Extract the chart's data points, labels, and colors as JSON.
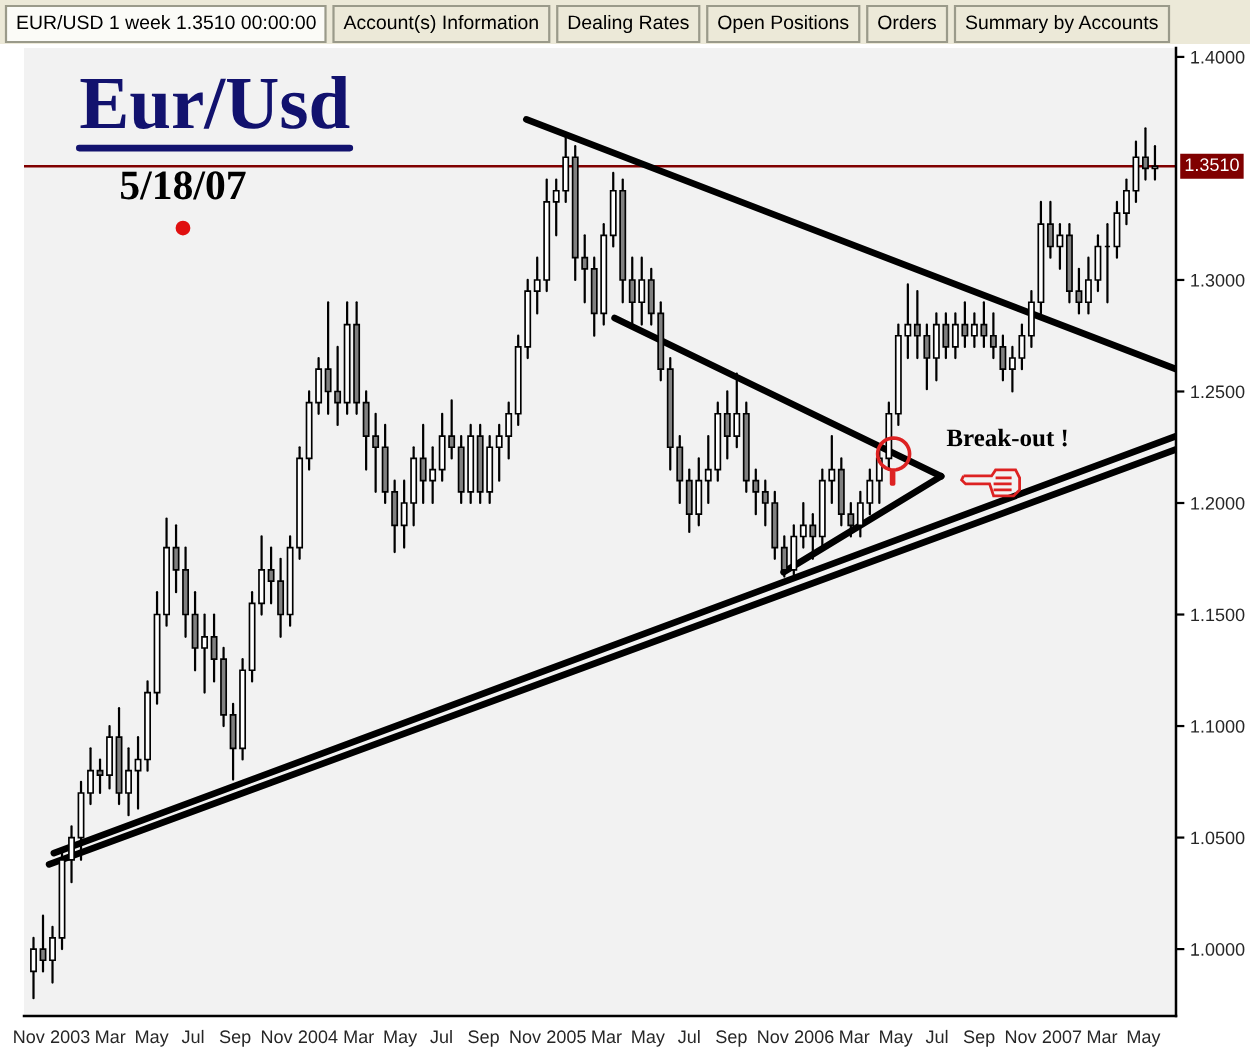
{
  "chart_data": {
    "type": "candlestick",
    "title": "Eur/Usd",
    "subtitle": "5/18/07",
    "x": [
      "2002-11-08",
      "2002-11-22",
      "2002-12-06",
      "2002-12-20",
      "2003-01-03",
      "2003-01-17",
      "2003-01-31",
      "2003-02-14",
      "2003-02-28",
      "2003-03-14",
      "2003-03-28",
      "2003-04-11",
      "2003-04-25",
      "2003-05-09",
      "2003-05-23",
      "2003-06-06",
      "2003-06-20",
      "2003-07-04",
      "2003-07-18",
      "2003-08-01",
      "2003-08-15",
      "2003-08-29",
      "2003-09-12",
      "2003-09-26",
      "2003-10-10",
      "2003-10-24",
      "2003-11-07",
      "2003-11-21",
      "2003-12-05",
      "2003-12-19",
      "2004-01-02",
      "2004-01-16",
      "2004-01-30",
      "2004-02-13",
      "2004-02-27",
      "2004-03-12",
      "2004-03-26",
      "2004-04-09",
      "2004-04-23",
      "2004-05-07",
      "2004-05-21",
      "2004-06-04",
      "2004-06-18",
      "2004-07-02",
      "2004-07-16",
      "2004-07-30",
      "2004-08-13",
      "2004-08-27",
      "2004-09-10",
      "2004-09-24",
      "2004-10-08",
      "2004-10-22",
      "2004-11-05",
      "2004-11-19",
      "2004-12-03",
      "2004-12-17",
      "2004-12-31",
      "2005-01-14",
      "2005-01-28",
      "2005-02-11",
      "2005-02-25",
      "2005-03-11",
      "2005-03-25",
      "2005-04-08",
      "2005-04-22",
      "2005-05-06",
      "2005-05-20",
      "2005-06-03",
      "2005-06-17",
      "2005-07-01",
      "2005-07-15",
      "2005-07-29",
      "2005-08-12",
      "2005-08-26",
      "2005-09-09",
      "2005-09-23",
      "2005-10-07",
      "2005-10-21",
      "2005-11-04",
      "2005-11-18",
      "2005-12-02",
      "2005-12-16",
      "2005-12-30",
      "2006-01-13",
      "2006-01-27",
      "2006-02-10",
      "2006-02-24",
      "2006-03-10",
      "2006-03-24",
      "2006-04-07",
      "2006-04-21",
      "2006-05-05",
      "2006-05-19",
      "2006-06-02",
      "2006-06-16",
      "2006-06-30",
      "2006-07-14",
      "2006-07-28",
      "2006-08-11",
      "2006-08-25",
      "2006-09-08",
      "2006-09-22",
      "2006-10-06",
      "2006-10-20",
      "2006-11-03",
      "2006-11-17",
      "2006-12-01",
      "2006-12-15",
      "2006-12-29",
      "2007-01-12",
      "2007-01-26",
      "2007-02-09",
      "2007-02-23",
      "2007-03-09",
      "2007-03-23",
      "2007-04-06",
      "2007-04-20",
      "2007-05-04",
      "2007-05-18"
    ],
    "ohlc": [
      [
        0.99,
        1.005,
        0.978,
        1.0
      ],
      [
        1.0,
        1.015,
        0.99,
        0.995
      ],
      [
        0.995,
        1.01,
        0.985,
        1.005
      ],
      [
        1.005,
        1.045,
        1.0,
        1.04
      ],
      [
        1.04,
        1.055,
        1.03,
        1.05
      ],
      [
        1.05,
        1.075,
        1.04,
        1.07
      ],
      [
        1.07,
        1.09,
        1.065,
        1.08
      ],
      [
        1.08,
        1.085,
        1.07,
        1.078
      ],
      [
        1.078,
        1.1,
        1.072,
        1.095
      ],
      [
        1.095,
        1.108,
        1.065,
        1.07
      ],
      [
        1.07,
        1.09,
        1.06,
        1.08
      ],
      [
        1.08,
        1.095,
        1.063,
        1.085
      ],
      [
        1.085,
        1.12,
        1.08,
        1.115
      ],
      [
        1.115,
        1.16,
        1.11,
        1.15
      ],
      [
        1.15,
        1.193,
        1.145,
        1.18
      ],
      [
        1.18,
        1.19,
        1.16,
        1.17
      ],
      [
        1.17,
        1.18,
        1.14,
        1.15
      ],
      [
        1.15,
        1.16,
        1.125,
        1.135
      ],
      [
        1.135,
        1.15,
        1.115,
        1.14
      ],
      [
        1.14,
        1.15,
        1.12,
        1.13
      ],
      [
        1.13,
        1.135,
        1.1,
        1.105
      ],
      [
        1.105,
        1.11,
        1.076,
        1.09
      ],
      [
        1.09,
        1.13,
        1.085,
        1.125
      ],
      [
        1.125,
        1.16,
        1.12,
        1.155
      ],
      [
        1.155,
        1.185,
        1.15,
        1.17
      ],
      [
        1.17,
        1.18,
        1.155,
        1.165
      ],
      [
        1.165,
        1.175,
        1.14,
        1.15
      ],
      [
        1.15,
        1.185,
        1.145,
        1.18
      ],
      [
        1.18,
        1.225,
        1.175,
        1.22
      ],
      [
        1.22,
        1.25,
        1.215,
        1.245
      ],
      [
        1.245,
        1.265,
        1.24,
        1.26
      ],
      [
        1.26,
        1.29,
        1.24,
        1.25
      ],
      [
        1.25,
        1.27,
        1.235,
        1.245
      ],
      [
        1.245,
        1.29,
        1.24,
        1.28
      ],
      [
        1.28,
        1.29,
        1.24,
        1.245
      ],
      [
        1.245,
        1.25,
        1.215,
        1.23
      ],
      [
        1.23,
        1.24,
        1.205,
        1.225
      ],
      [
        1.225,
        1.235,
        1.2,
        1.205
      ],
      [
        1.205,
        1.21,
        1.178,
        1.19
      ],
      [
        1.19,
        1.21,
        1.18,
        1.2
      ],
      [
        1.2,
        1.225,
        1.19,
        1.22
      ],
      [
        1.22,
        1.235,
        1.2,
        1.21
      ],
      [
        1.21,
        1.225,
        1.2,
        1.215
      ],
      [
        1.215,
        1.24,
        1.21,
        1.23
      ],
      [
        1.23,
        1.246,
        1.22,
        1.225
      ],
      [
        1.225,
        1.23,
        1.2,
        1.205
      ],
      [
        1.205,
        1.235,
        1.2,
        1.23
      ],
      [
        1.23,
        1.235,
        1.2,
        1.205
      ],
      [
        1.205,
        1.23,
        1.2,
        1.225
      ],
      [
        1.225,
        1.235,
        1.21,
        1.23
      ],
      [
        1.23,
        1.245,
        1.22,
        1.24
      ],
      [
        1.24,
        1.275,
        1.235,
        1.27
      ],
      [
        1.27,
        1.3,
        1.265,
        1.295
      ],
      [
        1.295,
        1.31,
        1.285,
        1.3
      ],
      [
        1.3,
        1.345,
        1.295,
        1.335
      ],
      [
        1.335,
        1.345,
        1.32,
        1.34
      ],
      [
        1.34,
        1.365,
        1.335,
        1.355
      ],
      [
        1.355,
        1.36,
        1.3,
        1.31
      ],
      [
        1.31,
        1.32,
        1.29,
        1.305
      ],
      [
        1.305,
        1.31,
        1.275,
        1.285
      ],
      [
        1.285,
        1.325,
        1.28,
        1.32
      ],
      [
        1.32,
        1.348,
        1.315,
        1.34
      ],
      [
        1.34,
        1.345,
        1.29,
        1.3
      ],
      [
        1.3,
        1.31,
        1.28,
        1.29
      ],
      [
        1.29,
        1.31,
        1.28,
        1.3
      ],
      [
        1.3,
        1.305,
        1.28,
        1.285
      ],
      [
        1.285,
        1.29,
        1.255,
        1.26
      ],
      [
        1.26,
        1.265,
        1.215,
        1.225
      ],
      [
        1.225,
        1.23,
        1.2,
        1.21
      ],
      [
        1.21,
        1.215,
        1.187,
        1.195
      ],
      [
        1.195,
        1.22,
        1.19,
        1.21
      ],
      [
        1.21,
        1.23,
        1.2,
        1.215
      ],
      [
        1.215,
        1.245,
        1.21,
        1.24
      ],
      [
        1.24,
        1.25,
        1.22,
        1.23
      ],
      [
        1.23,
        1.258,
        1.225,
        1.24
      ],
      [
        1.24,
        1.245,
        1.205,
        1.21
      ],
      [
        1.21,
        1.215,
        1.195,
        1.205
      ],
      [
        1.205,
        1.21,
        1.19,
        1.2
      ],
      [
        1.2,
        1.205,
        1.175,
        1.18
      ],
      [
        1.18,
        1.185,
        1.167,
        1.17
      ],
      [
        1.17,
        1.19,
        1.168,
        1.185
      ],
      [
        1.185,
        1.2,
        1.18,
        1.19
      ],
      [
        1.19,
        1.195,
        1.175,
        1.185
      ],
      [
        1.185,
        1.215,
        1.18,
        1.21
      ],
      [
        1.21,
        1.23,
        1.2,
        1.215
      ],
      [
        1.215,
        1.22,
        1.19,
        1.195
      ],
      [
        1.195,
        1.2,
        1.185,
        1.19
      ],
      [
        1.19,
        1.205,
        1.185,
        1.2
      ],
      [
        1.2,
        1.215,
        1.195,
        1.21
      ],
      [
        1.21,
        1.225,
        1.2,
        1.22
      ],
      [
        1.22,
        1.245,
        1.215,
        1.24
      ],
      [
        1.24,
        1.28,
        1.235,
        1.275
      ],
      [
        1.275,
        1.298,
        1.265,
        1.28
      ],
      [
        1.28,
        1.295,
        1.265,
        1.275
      ],
      [
        1.275,
        1.28,
        1.251,
        1.265
      ],
      [
        1.265,
        1.285,
        1.255,
        1.28
      ],
      [
        1.28,
        1.285,
        1.265,
        1.27
      ],
      [
        1.27,
        1.285,
        1.265,
        1.28
      ],
      [
        1.28,
        1.29,
        1.27,
        1.275
      ],
      [
        1.275,
        1.285,
        1.27,
        1.28
      ],
      [
        1.28,
        1.29,
        1.27,
        1.275
      ],
      [
        1.275,
        1.285,
        1.265,
        1.27
      ],
      [
        1.27,
        1.275,
        1.255,
        1.26
      ],
      [
        1.26,
        1.27,
        1.25,
        1.265
      ],
      [
        1.265,
        1.28,
        1.26,
        1.275
      ],
      [
        1.275,
        1.295,
        1.27,
        1.29
      ],
      [
        1.29,
        1.335,
        1.285,
        1.325
      ],
      [
        1.325,
        1.335,
        1.31,
        1.315
      ],
      [
        1.315,
        1.325,
        1.305,
        1.32
      ],
      [
        1.32,
        1.325,
        1.29,
        1.295
      ],
      [
        1.295,
        1.305,
        1.285,
        1.29
      ],
      [
        1.29,
        1.31,
        1.285,
        1.3
      ],
      [
        1.3,
        1.32,
        1.295,
        1.315
      ],
      [
        1.315,
        1.325,
        1.29,
        1.315
      ],
      [
        1.315,
        1.335,
        1.31,
        1.33
      ],
      [
        1.33,
        1.345,
        1.325,
        1.34
      ],
      [
        1.34,
        1.362,
        1.335,
        1.355
      ],
      [
        1.355,
        1.368,
        1.345,
        1.35
      ],
      [
        1.35,
        1.36,
        1.345,
        1.351
      ]
    ],
    "series": [
      {
        "type": "line",
        "color": "#000000",
        "x": [
          "2002-12-08",
          "2007-06-18"
        ],
        "values": [
          1.043,
          1.23
        ]
      },
      {
        "type": "line",
        "color": "#000000",
        "x": [
          "2002-12-01",
          "2007-06-18"
        ],
        "values": [
          1.038,
          1.224
        ]
      },
      {
        "type": "line",
        "color": "#000000",
        "x": [
          "2004-11-03",
          "2007-06-18"
        ],
        "values": [
          1.372,
          1.26
        ]
      },
      {
        "type": "line",
        "color": "#000000",
        "x": [
          "2005-03-13",
          "2006-07-07"
        ],
        "values": [
          1.283,
          1.212
        ]
      },
      {
        "type": "line",
        "color": "#000000",
        "x": [
          "2005-11-17",
          "2006-07-07"
        ],
        "values": [
          1.169,
          1.212
        ]
      }
    ],
    "xlim": [
      "2002-10-25",
      "2007-06-18"
    ],
    "ylim": [
      0.97,
      1.404
    ],
    "xticks": [
      {
        "value": "2002-11-01",
        "label": "Nov"
      },
      {
        "value": "2003-01-01",
        "label": "2003"
      },
      {
        "value": "2003-03-01",
        "label": "Mar"
      },
      {
        "value": "2003-05-01",
        "label": "May"
      },
      {
        "value": "2003-07-01",
        "label": "Jul"
      },
      {
        "value": "2003-09-01",
        "label": "Sep"
      },
      {
        "value": "2003-11-01",
        "label": "Nov"
      },
      {
        "value": "2004-01-01",
        "label": "2004"
      },
      {
        "value": "2004-03-01",
        "label": "Mar"
      },
      {
        "value": "2004-05-01",
        "label": "May"
      },
      {
        "value": "2004-07-01",
        "label": "Jul"
      },
      {
        "value": "2004-09-01",
        "label": "Sep"
      },
      {
        "value": "2004-11-01",
        "label": "Nov"
      },
      {
        "value": "2005-01-01",
        "label": "2005"
      },
      {
        "value": "2005-03-01",
        "label": "Mar"
      },
      {
        "value": "2005-05-01",
        "label": "May"
      },
      {
        "value": "2005-07-01",
        "label": "Jul"
      },
      {
        "value": "2005-09-01",
        "label": "Sep"
      },
      {
        "value": "2005-11-01",
        "label": "Nov"
      },
      {
        "value": "2006-01-01",
        "label": "2006"
      },
      {
        "value": "2006-03-01",
        "label": "Mar"
      },
      {
        "value": "2006-05-01",
        "label": "May"
      },
      {
        "value": "2006-07-01",
        "label": "Jul"
      },
      {
        "value": "2006-09-01",
        "label": "Sep"
      },
      {
        "value": "2006-11-01",
        "label": "Nov"
      },
      {
        "value": "2007-01-01",
        "label": "2007"
      },
      {
        "value": "2007-03-01",
        "label": "Mar"
      },
      {
        "value": "2007-05-01",
        "label": "May"
      }
    ],
    "yticks": [
      {
        "value": 1.0,
        "label": "1.0000"
      },
      {
        "value": 1.05,
        "label": "1.0500"
      },
      {
        "value": 1.1,
        "label": "1.1000"
      },
      {
        "value": 1.15,
        "label": "1.1500"
      },
      {
        "value": 1.2,
        "label": "1.2000"
      },
      {
        "value": 1.25,
        "label": "1.2500"
      },
      {
        "value": 1.3,
        "label": "1.3000"
      },
      {
        "value": 1.4,
        "label": "1.4000"
      }
    ],
    "ref_lines": [
      {
        "axis": "y",
        "value": 1.351,
        "label": "1.3510",
        "color": "#800000"
      }
    ],
    "annotations": [
      "EUR/USD 1 week 1.3510 00:00:00",
      "Account(s) Information",
      "Dealing Rates",
      "Open Positions",
      "Orders",
      "Summary by Accounts",
      {
        "text": "Break-out !",
        "x": "2006-04-28",
        "y": 1.222
      }
    ]
  }
}
